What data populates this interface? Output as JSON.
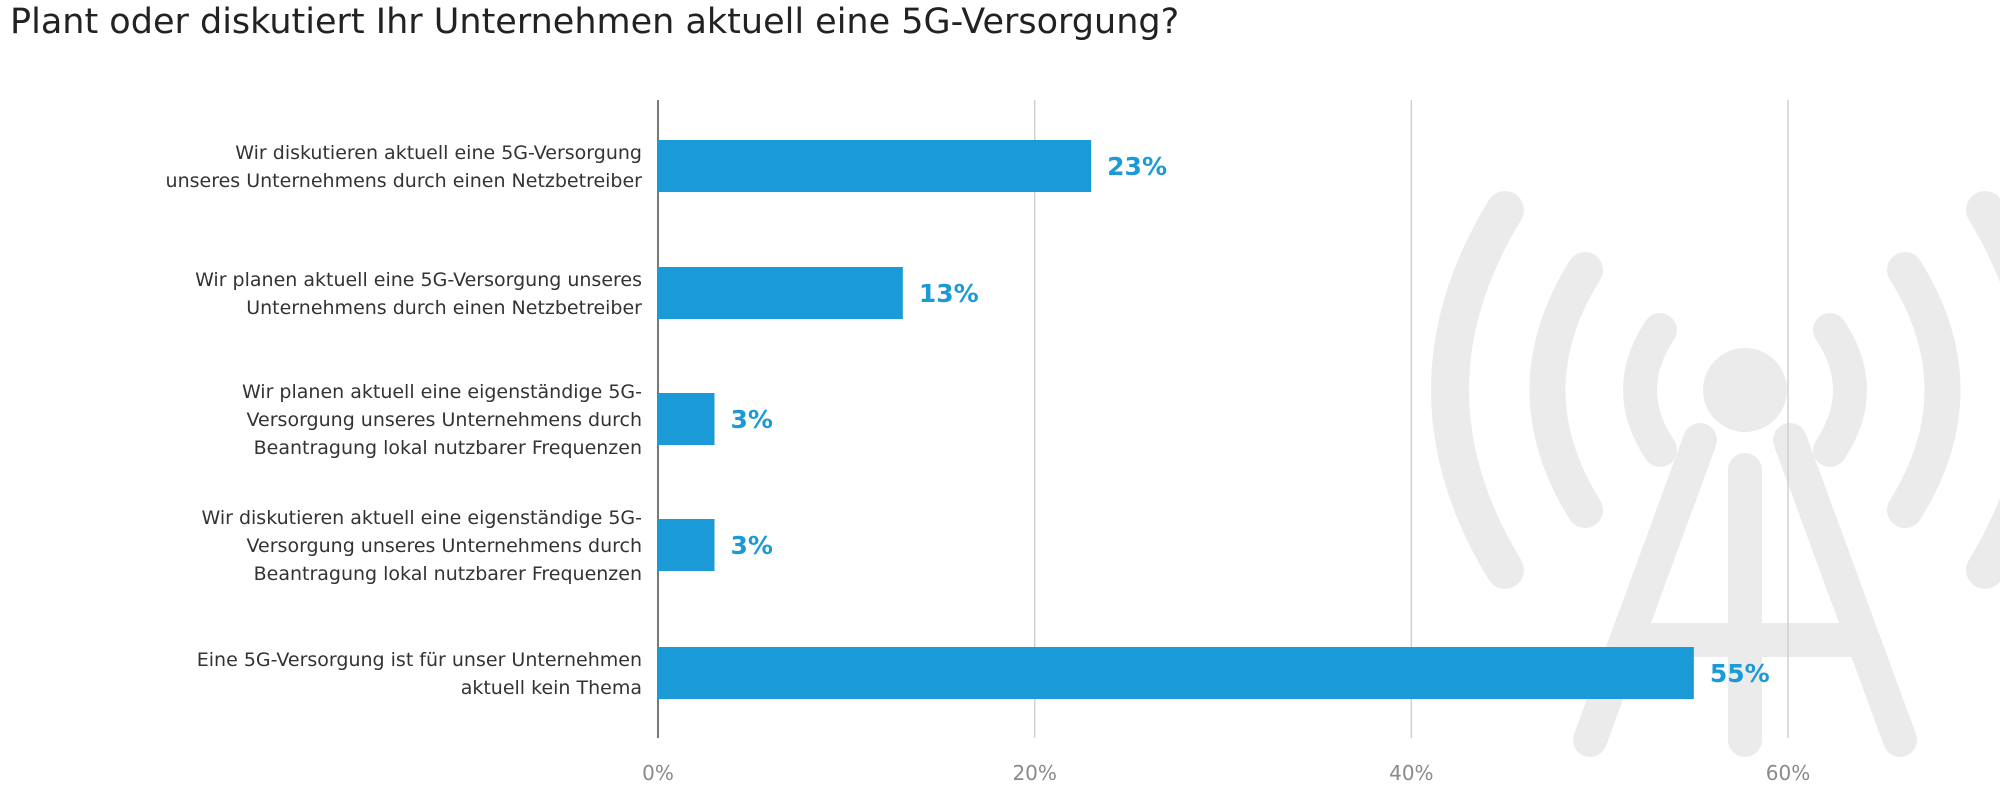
{
  "chart_data": {
    "type": "bar",
    "orientation": "horizontal",
    "title": "Plant oder diskutiert Ihr Unternehmen aktuell eine 5G-Versorgung?",
    "categories": [
      [
        "Wir diskutieren aktuell eine 5G-Versorgung",
        "unseres Unternehmens durch einen Netzbetreiber"
      ],
      [
        "Wir planen aktuell eine 5G-Versorgung unseres",
        "Unternehmens durch einen Netzbetreiber"
      ],
      [
        "Wir planen aktuell eine eigenständige 5G-",
        "Versorgung unseres Unternehmens durch",
        "Beantragung lokal nutzbarer Frequenzen"
      ],
      [
        "Wir diskutieren aktuell eine eigenständige 5G-",
        "Versorgung unseres Unternehmens durch",
        "Beantragung lokal nutzbarer Frequenzen"
      ],
      [
        "Eine 5G-Versorgung ist für unser Unternehmen",
        "aktuell kein Thema"
      ]
    ],
    "values": [
      23,
      13,
      3,
      3,
      55
    ],
    "data_labels": [
      "23%",
      "13%",
      "3%",
      "3%",
      "55%"
    ],
    "xlim": [
      0,
      60
    ],
    "xticks": [
      0,
      20,
      40,
      60
    ],
    "xtick_labels": [
      "0%",
      "20%",
      "40%",
      "60%"
    ],
    "grid": true,
    "bar_color": "#1a9ad6",
    "label_color": "#1a9ad6",
    "background_icon": "antenna-tower-icon"
  }
}
